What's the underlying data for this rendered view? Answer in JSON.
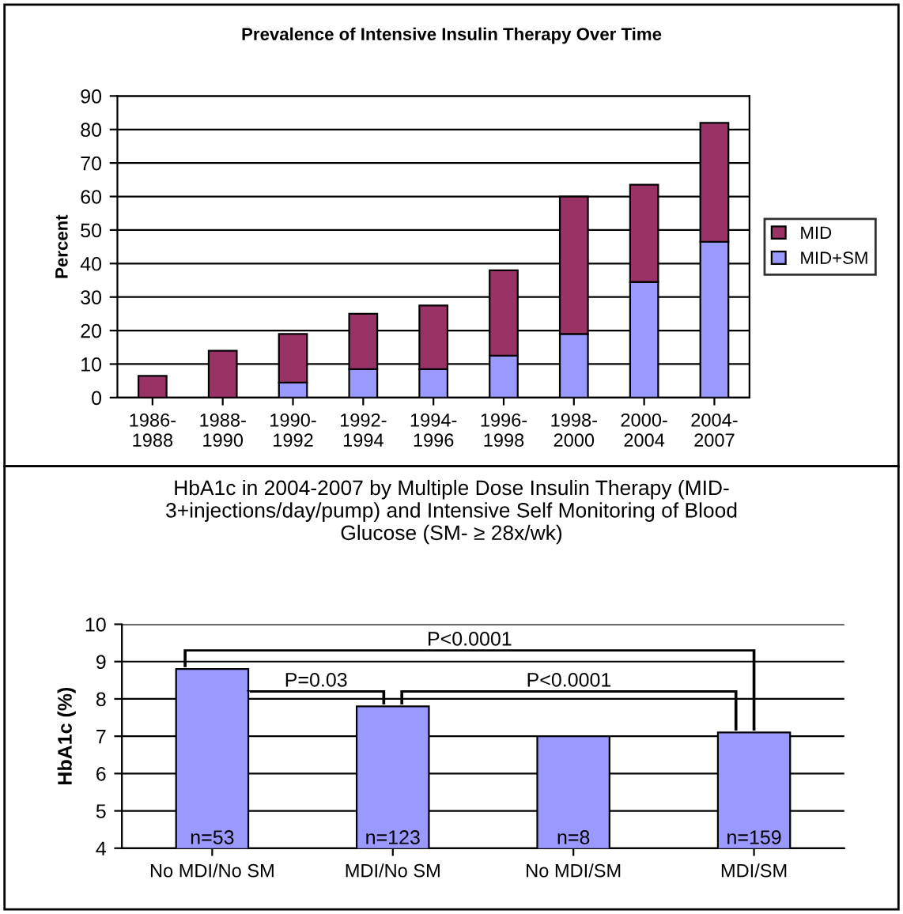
{
  "chart_data": [
    {
      "type": "bar",
      "title": "Prevalence of Intensive Insulin Therapy Over Time",
      "ylabel": "Percent",
      "categories": [
        "1986-\n1988",
        "1988-\n1990",
        "1990-\n1992",
        "1992-\n1994",
        "1994-\n1996",
        "1996-\n1998",
        "1998-\n2000",
        "2000-\n2004",
        "2004-\n2007"
      ],
      "stacked": true,
      "series": [
        {
          "name": "MID+SM",
          "color": "#9999ff",
          "values": [
            0,
            0,
            4.5,
            8.5,
            8.5,
            12.5,
            19,
            34.5,
            46.5
          ]
        },
        {
          "name": "MID",
          "color": "#993366",
          "values": [
            6.5,
            14,
            14.5,
            16.5,
            19,
            25.5,
            41,
            29,
            35.5
          ]
        }
      ],
      "ylim": [
        0,
        90
      ],
      "yticks": [
        0,
        10,
        20,
        30,
        40,
        50,
        60,
        70,
        80,
        90
      ],
      "grid": "y",
      "legend": "right"
    },
    {
      "type": "bar",
      "title": "HbA1c in 2004-2007 by Multiple Dose Insulin Therapy (MID-\n3+injections/day/pump) and Intensive Self Monitoring of Blood\nGlucose (SM- ≥ 28x/wk)",
      "ylabel": "HbA1c (%)",
      "categories": [
        "No MDI/No SM",
        "MDI/No SM",
        "No MDI/SM",
        "MDI/SM"
      ],
      "series": [
        {
          "color": "#9999ff",
          "values": [
            8.8,
            7.8,
            7.0,
            7.1
          ]
        }
      ],
      "ylim": [
        4,
        10
      ],
      "yticks": [
        4,
        5,
        6,
        7,
        8,
        9,
        10
      ],
      "grid": "y",
      "annotations": [
        "P<0.0001",
        "P=0.03",
        "P<0.0001",
        "n=53",
        "n=123",
        "n=8",
        "n=159"
      ]
    }
  ]
}
